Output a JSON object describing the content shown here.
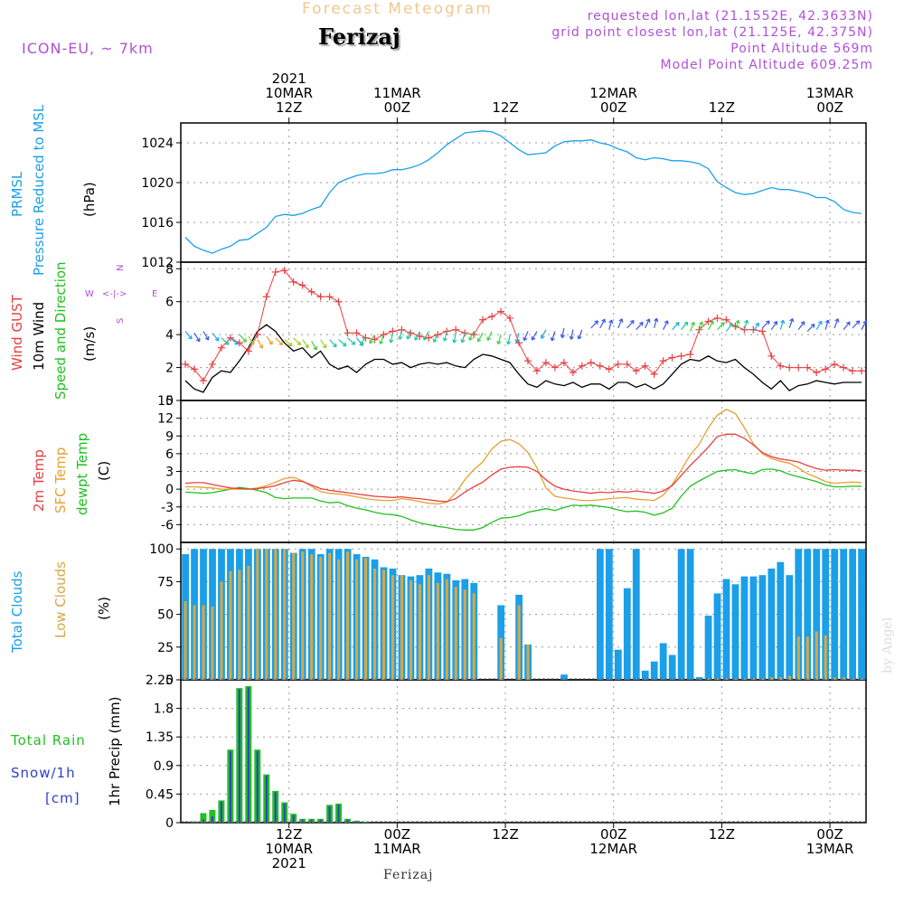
{
  "header": {
    "title": "Forecast Meteogram",
    "location": "Ferizaj",
    "model": "ICON-EU, ~ 7km",
    "requested": "requested lon,lat (21.1552E, 42.3633N)",
    "grid_point": "grid point closest lon,lat (21.125E, 42.375N)",
    "point_altitude": "Point Altitude 569m",
    "model_altitude": "Model Point Altitude 609.25m",
    "footer_location": "Ferizaj",
    "watermark": "by Angel"
  },
  "colors": {
    "pressure": "#1aa0e8",
    "gust": "#e84040",
    "wind": "#000000",
    "temp2m": "#e84040",
    "sfc": "#e8a030",
    "dew": "#20c020",
    "total_cloud": "#1a9fe8",
    "low_cloud": "#d4a848",
    "rain": "#20c020",
    "snow": "#3040c8",
    "label_purple": "#b050d8"
  },
  "time_axis": {
    "top_ticks": [
      {
        "x": 12,
        "lines": [
          "2021",
          "10MAR",
          "12Z"
        ]
      },
      {
        "x": 24,
        "lines": [
          "",
          "11MAR",
          "00Z"
        ]
      },
      {
        "x": 36,
        "lines": [
          "",
          "",
          "12Z"
        ]
      },
      {
        "x": 48,
        "lines": [
          "",
          "12MAR",
          "00Z"
        ]
      },
      {
        "x": 60,
        "lines": [
          "",
          "",
          "12Z"
        ]
      },
      {
        "x": 72,
        "lines": [
          "",
          "13MAR",
          "00Z"
        ]
      }
    ],
    "bottom_ticks": [
      {
        "x": 12,
        "lines": [
          "12Z",
          "10MAR",
          "2021"
        ]
      },
      {
        "x": 24,
        "lines": [
          "00Z",
          "11MAR",
          ""
        ]
      },
      {
        "x": 36,
        "lines": [
          "12Z",
          "",
          ""
        ]
      },
      {
        "x": 48,
        "lines": [
          "00Z",
          "12MAR",
          ""
        ]
      },
      {
        "x": 60,
        "lines": [
          "12Z",
          "",
          ""
        ]
      },
      {
        "x": 72,
        "lines": [
          "00Z",
          "13MAR",
          ""
        ]
      }
    ]
  },
  "panel_labels": {
    "pressure": [
      "PRMSL",
      "Pressure Reduced to MSL",
      "(hPa)"
    ],
    "wind": [
      "Wind GUST",
      "10m Wind",
      "Speed and Direction",
      "(m/s)"
    ],
    "temp": [
      "2m Temp",
      "SFC Temp",
      "dewpt Temp",
      "(C)"
    ],
    "cloud": [
      "Total Clouds",
      "Low Clouds",
      "(%)"
    ],
    "precip": [
      "1hr Precip (mm)"
    ],
    "precip_side": [
      "Total   Rain",
      "Snow/1h",
      "[cm]"
    ],
    "compass": [
      "W",
      "<-|->",
      "E",
      "N",
      "S"
    ]
  },
  "chart_data": [
    {
      "type": "line",
      "name": "pressure",
      "ylabel": "(hPa)",
      "ylim": [
        1012,
        1026
      ],
      "yticks": [
        1012,
        1016,
        1020,
        1024
      ],
      "x": [
        0,
        1,
        2,
        3,
        4,
        5,
        6,
        7,
        8,
        9,
        10,
        11,
        12,
        13,
        14,
        15,
        16,
        17,
        18,
        19,
        20,
        21,
        22,
        23,
        24,
        25,
        26,
        27,
        28,
        29,
        30,
        31,
        32,
        33,
        34,
        35,
        36,
        37,
        38,
        39,
        40,
        41,
        42,
        43,
        44,
        45,
        46,
        47,
        48,
        49,
        50,
        51,
        52,
        53,
        54,
        55,
        56,
        57,
        58,
        59,
        60,
        61,
        62,
        63,
        64,
        65,
        66,
        67,
        68,
        69,
        70,
        71,
        72,
        73,
        74,
        75
      ],
      "values": [
        1014.5,
        1013.6,
        1013.2,
        1012.9,
        1013.3,
        1013.6,
        1014.2,
        1014.3,
        1014.9,
        1015.5,
        1016.6,
        1016.8,
        1016.7,
        1016.9,
        1017.3,
        1017.6,
        1019.0,
        1020.0,
        1020.4,
        1020.7,
        1020.9,
        1020.9,
        1021.0,
        1021.3,
        1021.3,
        1021.5,
        1021.8,
        1022.3,
        1023.0,
        1023.8,
        1024.4,
        1025.0,
        1025.1,
        1025.2,
        1025.1,
        1024.7,
        1024.0,
        1023.3,
        1022.8,
        1022.9,
        1023.0,
        1023.7,
        1024.1,
        1024.2,
        1024.2,
        1024.3,
        1024.0,
        1023.8,
        1023.4,
        1023.1,
        1022.5,
        1022.3,
        1022.5,
        1022.4,
        1022.2,
        1022.2,
        1022.1,
        1021.9,
        1021.4,
        1020.1,
        1019.5,
        1019.0,
        1018.8,
        1018.9,
        1019.2,
        1019.5,
        1019.3,
        1019.3,
        1019.1,
        1018.9,
        1018.5,
        1018.5,
        1018.1,
        1017.3,
        1017.0,
        1016.9
      ]
    },
    {
      "type": "line",
      "name": "wind",
      "ylabel": "(m/s)",
      "ylim": [
        0,
        8.4
      ],
      "yticks": [
        0,
        2,
        4,
        6,
        8
      ],
      "x": [
        0,
        1,
        2,
        3,
        4,
        5,
        6,
        7,
        8,
        9,
        10,
        11,
        12,
        13,
        14,
        15,
        16,
        17,
        18,
        19,
        20,
        21,
        22,
        23,
        24,
        25,
        26,
        27,
        28,
        29,
        30,
        31,
        32,
        33,
        34,
        35,
        36,
        37,
        38,
        39,
        40,
        41,
        42,
        43,
        44,
        45,
        46,
        47,
        48,
        49,
        50,
        51,
        52,
        53,
        54,
        55,
        56,
        57,
        58,
        59,
        60,
        61,
        62,
        63,
        64,
        65,
        66,
        67,
        68,
        69,
        70,
        71,
        72,
        73,
        74,
        75
      ],
      "gust": [
        2.2,
        1.9,
        1.2,
        2.2,
        3.2,
        3.8,
        3.5,
        3.0,
        4.0,
        6.3,
        7.8,
        7.9,
        7.2,
        7.0,
        6.6,
        6.3,
        6.3,
        6.0,
        4.1,
        4.1,
        3.8,
        3.7,
        4.0,
        4.2,
        4.3,
        4.1,
        3.9,
        3.8,
        4.0,
        4.2,
        4.3,
        4.1,
        4.0,
        4.9,
        5.1,
        5.4,
        5.0,
        3.5,
        2.4,
        1.8,
        2.3,
        2.0,
        2.3,
        1.7,
        2.1,
        2.3,
        2.1,
        1.9,
        2.2,
        2.2,
        1.8,
        2.1,
        1.6,
        2.4,
        2.6,
        2.7,
        2.8,
        4.3,
        4.8,
        5.0,
        4.9,
        4.5,
        4.3,
        4.3,
        4.2,
        2.7,
        2.1,
        2.0,
        2.0,
        2.0,
        1.7,
        1.9,
        2.2,
        2.0,
        1.8,
        1.8
      ],
      "wind_speed": [
        1.2,
        0.7,
        0.5,
        1.4,
        1.8,
        1.7,
        2.4,
        3.2,
        4.2,
        4.6,
        4.2,
        3.5,
        3.0,
        3.2,
        2.6,
        3.0,
        2.2,
        1.9,
        2.1,
        1.7,
        2.2,
        2.5,
        2.5,
        2.2,
        2.3,
        2.0,
        2.2,
        2.3,
        2.2,
        2.3,
        2.1,
        2.0,
        2.5,
        2.8,
        2.7,
        2.5,
        2.3,
        1.6,
        1.0,
        0.8,
        1.2,
        1.0,
        0.9,
        1.1,
        0.8,
        1.0,
        1.0,
        0.7,
        1.1,
        1.1,
        0.8,
        1.0,
        0.7,
        1.0,
        1.6,
        2.2,
        2.5,
        2.4,
        2.7,
        2.4,
        2.3,
        2.5,
        2.0,
        1.6,
        1.1,
        0.7,
        1.2,
        0.6,
        0.9,
        1.0,
        1.2,
        1.1,
        1.0,
        1.1,
        1.1,
        1.1
      ],
      "barb_y": [
        4.2,
        4.1,
        4.2,
        4.1,
        3.8,
        3.8,
        4.0,
        3.9,
        3.7,
        3.9,
        3.8,
        3.7,
        3.8,
        3.7,
        3.6,
        3.7,
        3.7,
        3.7,
        3.8,
        3.8,
        3.9,
        4.0,
        4.0,
        4.1,
        4.3,
        4.3,
        4.2,
        4.2,
        4.1,
        4.2,
        4.1,
        4.1,
        4.2,
        4.1,
        4.2,
        4.0,
        4.0,
        4.1,
        4.2,
        4.2,
        4.3,
        4.2,
        4.4,
        4.3,
        4.3,
        4.4,
        4.4,
        4.3,
        4.4,
        4.4,
        4.3,
        4.4,
        4.4,
        4.3,
        4.3,
        4.3,
        4.2,
        4.2,
        4.3,
        4.3,
        4.2,
        4.3,
        4.3,
        4.2,
        4.4,
        4.3,
        4.3,
        4.4,
        4.3,
        4.2,
        4.3,
        4.3,
        4.4,
        4.3,
        4.4,
        4.3
      ]
    },
    {
      "type": "line",
      "name": "temperature",
      "ylabel": "(C)",
      "ylim": [
        -9,
        15
      ],
      "yticks": [
        -6,
        -3,
        0,
        3,
        6,
        9,
        12,
        15
      ],
      "x": [
        0,
        1,
        2,
        3,
        4,
        5,
        6,
        7,
        8,
        9,
        10,
        11,
        12,
        13,
        14,
        15,
        16,
        17,
        18,
        19,
        20,
        21,
        22,
        23,
        24,
        25,
        26,
        27,
        28,
        29,
        30,
        31,
        32,
        33,
        34,
        35,
        36,
        37,
        38,
        39,
        40,
        41,
        42,
        43,
        44,
        45,
        46,
        47,
        48,
        49,
        50,
        51,
        52,
        53,
        54,
        55,
        56,
        57,
        58,
        59,
        60,
        61,
        62,
        63,
        64,
        65,
        66,
        67,
        68,
        69,
        70,
        71,
        72,
        73,
        74,
        75
      ],
      "t2m": [
        1.0,
        1.1,
        1.1,
        0.8,
        0.5,
        0.2,
        0.1,
        0.0,
        0.1,
        0.3,
        0.6,
        1.1,
        1.5,
        1.3,
        0.7,
        0.1,
        -0.2,
        -0.4,
        -0.6,
        -0.8,
        -1.0,
        -1.2,
        -1.3,
        -1.4,
        -1.3,
        -1.5,
        -1.6,
        -1.8,
        -2.0,
        -2.1,
        -1.6,
        -0.5,
        0.4,
        1.2,
        2.4,
        3.4,
        3.7,
        3.8,
        3.7,
        3.0,
        1.6,
        0.5,
        0.0,
        -0.3,
        -0.5,
        -0.7,
        -0.5,
        -0.6,
        -0.4,
        -0.5,
        -0.3,
        -0.5,
        -0.7,
        -0.3,
        0.6,
        2.3,
        4.0,
        5.5,
        7.1,
        8.9,
        9.3,
        9.3,
        8.6,
        7.5,
        6.2,
        5.5,
        5.1,
        4.9,
        4.6,
        4.0,
        3.5,
        3.2,
        3.3,
        3.2,
        3.2,
        3.1
      ],
      "sfc": [
        0.4,
        0.4,
        0.3,
        0.2,
        0.0,
        0.0,
        0.0,
        0.0,
        0.2,
        0.6,
        1.2,
        1.8,
        2.0,
        1.4,
        0.5,
        -0.4,
        -0.7,
        -0.8,
        -1.0,
        -1.3,
        -1.6,
        -1.8,
        -1.9,
        -1.9,
        -1.6,
        -1.8,
        -2.1,
        -2.4,
        -2.5,
        -2.2,
        -0.6,
        1.6,
        3.3,
        4.6,
        6.8,
        8.1,
        8.4,
        7.7,
        6.2,
        3.6,
        0.2,
        -1.2,
        -1.5,
        -1.7,
        -1.9,
        -1.9,
        -1.8,
        -1.6,
        -1.5,
        -1.4,
        -1.7,
        -1.8,
        -1.9,
        -1.0,
        0.8,
        3.2,
        5.8,
        7.6,
        10.4,
        12.5,
        13.5,
        12.8,
        10.4,
        7.7,
        6.0,
        5.2,
        4.7,
        4.4,
        3.6,
        2.6,
        2.0,
        1.3,
        1.0,
        1.1,
        1.2,
        1.1
      ],
      "dew": [
        -0.5,
        -0.6,
        -0.7,
        -0.6,
        -0.3,
        0.0,
        0.3,
        0.1,
        -0.2,
        -0.6,
        -1.4,
        -1.6,
        -1.5,
        -1.5,
        -1.5,
        -2.0,
        -2.3,
        -2.2,
        -2.8,
        -3.2,
        -3.5,
        -3.9,
        -4.2,
        -4.3,
        -4.6,
        -5.2,
        -5.7,
        -6.0,
        -6.3,
        -6.5,
        -6.8,
        -6.9,
        -6.9,
        -6.5,
        -5.6,
        -4.9,
        -4.8,
        -4.5,
        -3.9,
        -3.6,
        -3.3,
        -3.6,
        -3.1,
        -2.7,
        -2.8,
        -2.7,
        -2.9,
        -3.1,
        -3.5,
        -3.8,
        -3.7,
        -3.9,
        -4.4,
        -4.0,
        -3.2,
        -1.2,
        0.5,
        1.4,
        2.2,
        3.0,
        3.2,
        3.3,
        2.9,
        2.6,
        3.3,
        3.4,
        3.1,
        2.5,
        2.1,
        1.7,
        1.3,
        0.7,
        0.4,
        0.4,
        0.5,
        0.5
      ]
    },
    {
      "type": "bar",
      "name": "clouds",
      "ylabel": "(%)",
      "ylim": [
        0,
        105
      ],
      "yticks": [
        0,
        25,
        50,
        75,
        100
      ],
      "x": [
        0,
        1,
        2,
        3,
        4,
        5,
        6,
        7,
        8,
        9,
        10,
        11,
        12,
        13,
        14,
        15,
        16,
        17,
        18,
        19,
        20,
        21,
        22,
        23,
        24,
        25,
        26,
        27,
        28,
        29,
        30,
        31,
        32,
        33,
        34,
        35,
        36,
        37,
        38,
        39,
        40,
        41,
        42,
        43,
        44,
        45,
        46,
        47,
        48,
        49,
        50,
        51,
        52,
        53,
        54,
        55,
        56,
        57,
        58,
        59,
        60,
        61,
        62,
        63,
        64,
        65,
        66,
        67,
        68,
        69,
        70,
        71,
        72,
        73,
        74,
        75
      ],
      "total": [
        96,
        100,
        100,
        100,
        100,
        100,
        100,
        100,
        100,
        100,
        100,
        100,
        97,
        100,
        100,
        96,
        100,
        100,
        100,
        96,
        94,
        92,
        86,
        85,
        80,
        79,
        80,
        85,
        82,
        81,
        76,
        77,
        74,
        0,
        0,
        57,
        0,
        65,
        27,
        0,
        0,
        0,
        4,
        0,
        0,
        0,
        100,
        100,
        23,
        70,
        100,
        7,
        14,
        28,
        19,
        100,
        100,
        2,
        49,
        66,
        77,
        73,
        79,
        79,
        80,
        85,
        90,
        80,
        100,
        100,
        100,
        100,
        100,
        100,
        100,
        100
      ],
      "low": [
        60,
        57,
        57,
        56,
        75,
        83,
        84,
        87,
        100,
        100,
        100,
        100,
        97,
        98,
        96,
        94,
        97,
        92,
        98,
        92,
        93,
        85,
        84,
        80,
        80,
        76,
        73,
        80,
        74,
        77,
        71,
        69,
        66,
        0,
        0,
        32,
        0,
        57,
        27,
        0,
        0,
        0,
        0,
        0,
        0,
        0,
        0,
        0,
        0,
        0,
        0,
        0,
        0,
        0,
        0,
        0,
        0,
        0,
        1,
        1,
        1,
        1,
        1,
        1,
        1,
        2,
        2,
        3,
        33,
        33,
        37,
        34,
        2,
        2,
        1,
        1
      ]
    },
    {
      "type": "bar",
      "name": "precipitation",
      "ylabel": "1hr Precip (mm)",
      "ylim": [
        0,
        2.25
      ],
      "yticks": [
        0,
        0.45,
        0.9,
        1.35,
        1.8,
        2.25
      ],
      "x": [
        0,
        1,
        2,
        3,
        4,
        5,
        6,
        7,
        8,
        9,
        10,
        11,
        12,
        13,
        14,
        15,
        16,
        17,
        18,
        19,
        20,
        21,
        22,
        23,
        24,
        25,
        26,
        27,
        28,
        29,
        30,
        31,
        32,
        33,
        34,
        35,
        36,
        37,
        38,
        39,
        40,
        41,
        42,
        43,
        44,
        45,
        46,
        47,
        48,
        49,
        50,
        51,
        52,
        53,
        54,
        55,
        56,
        57,
        58,
        59,
        60,
        61,
        62,
        63,
        64,
        65,
        66,
        67,
        68,
        69,
        70,
        71,
        72,
        73,
        74,
        75
      ],
      "rain": [
        0,
        0.02,
        0.15,
        0.2,
        0.35,
        1.15,
        2.12,
        2.15,
        1.15,
        0.76,
        0.5,
        0.32,
        0.14,
        0.06,
        0.06,
        0.06,
        0.28,
        0.3,
        0.06,
        0.03,
        0.01,
        0,
        0,
        0,
        0,
        0,
        0,
        0,
        0,
        0,
        0,
        0,
        0,
        0,
        0,
        0,
        0,
        0,
        0,
        0,
        0,
        0,
        0,
        0,
        0,
        0,
        0,
        0,
        0,
        0,
        0,
        0,
        0,
        0,
        0,
        0,
        0,
        0,
        0,
        0,
        0,
        0,
        0,
        0,
        0,
        0,
        0,
        0,
        0,
        0,
        0,
        0,
        0,
        0,
        0,
        0
      ],
      "snow": [
        0,
        0.01,
        0.05,
        0.1,
        0.33,
        1.13,
        2.1,
        2.13,
        1.13,
        0.74,
        0.48,
        0.3,
        0.12,
        0.05,
        0.05,
        0.05,
        0.26,
        0.28,
        0.05,
        0.02,
        0,
        0,
        0,
        0,
        0,
        0,
        0,
        0,
        0,
        0,
        0,
        0,
        0,
        0,
        0,
        0,
        0,
        0,
        0,
        0,
        0,
        0,
        0,
        0,
        0,
        0,
        0,
        0,
        0,
        0,
        0,
        0,
        0,
        0,
        0,
        0,
        0,
        0,
        0,
        0,
        0,
        0,
        0,
        0,
        0,
        0,
        0,
        0,
        0,
        0,
        0,
        0,
        0,
        0,
        0,
        0
      ]
    }
  ]
}
